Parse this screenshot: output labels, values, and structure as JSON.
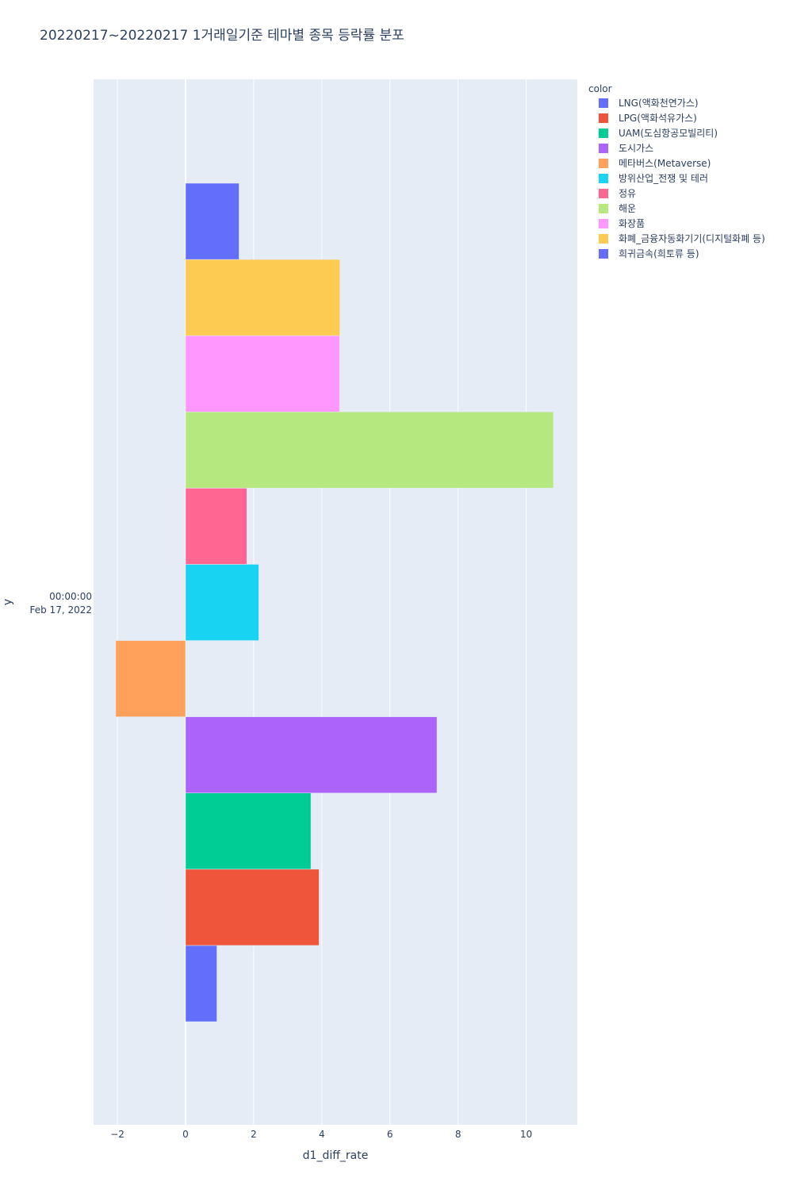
{
  "chart_data": {
    "type": "bar",
    "orientation": "horizontal",
    "barmode": "group",
    "title": "20220217~20220217 1거래일기준 테마별 종목 등락률 분포",
    "xlabel": "d1_diff_rate",
    "ylabel": "y",
    "xlim": [
      -2.7,
      11.5
    ],
    "x_ticks": [
      -2,
      0,
      2,
      4,
      6,
      8,
      10
    ],
    "x_tick_labels": [
      "−2",
      "0",
      "2",
      "4",
      "6",
      "8",
      "10"
    ],
    "y_category_line1": "00:00:00",
    "y_category_line2": "Feb 17, 2022",
    "grid": true,
    "legend_title": "color",
    "legend_position": "right",
    "series": [
      {
        "name": "LNG(액화천연가스)",
        "value": 0.92,
        "color": "#636efa"
      },
      {
        "name": "LPG(액화석유가스)",
        "value": 3.92,
        "color": "#EF553B"
      },
      {
        "name": "UAM(도심항공모빌리티)",
        "value": 3.68,
        "color": "#00cc96"
      },
      {
        "name": "도시가스",
        "value": 7.38,
        "color": "#ab63fa"
      },
      {
        "name": "메타버스(Metaverse)",
        "value": -2.05,
        "color": "#FFA15A"
      },
      {
        "name": "방위산업_전쟁 및 테러",
        "value": 2.15,
        "color": "#19d3f3"
      },
      {
        "name": "정유",
        "value": 1.8,
        "color": "#FF6692"
      },
      {
        "name": "해운",
        "value": 10.8,
        "color": "#B6E880"
      },
      {
        "name": "화장품",
        "value": 4.52,
        "color": "#FF97FF"
      },
      {
        "name": "화폐_금융자동화기기(디지털화폐 등)",
        "value": 4.53,
        "color": "#FECB52"
      },
      {
        "name": "희귀금속(희토류 등)",
        "value": 1.57,
        "color": "#636efa"
      }
    ]
  }
}
